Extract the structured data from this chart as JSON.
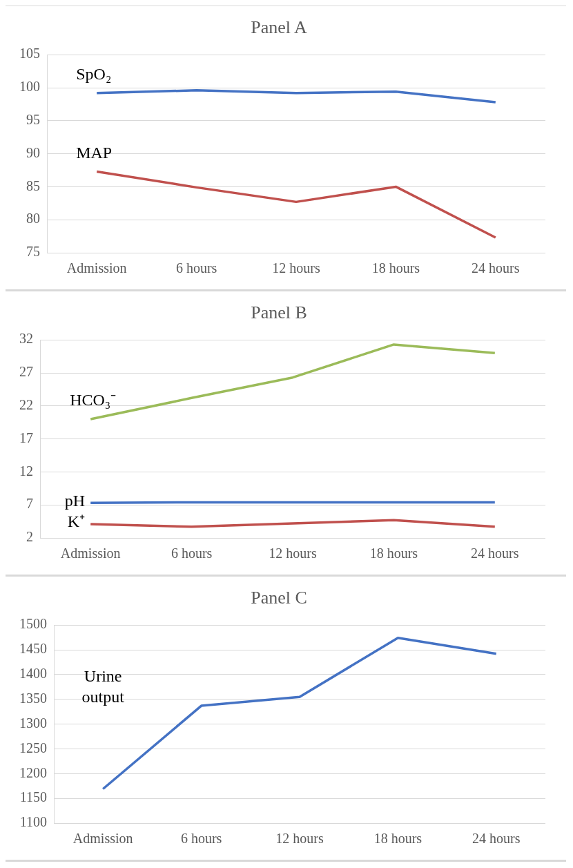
{
  "chart_data": [
    {
      "type": "line",
      "title": "Panel A",
      "categories": [
        "Admission",
        "6 hours",
        "12 hours",
        "18 hours",
        "24 hours"
      ],
      "ylim": [
        75,
        105
      ],
      "yticks": [
        75,
        80,
        85,
        90,
        95,
        100,
        105
      ],
      "grid": "y",
      "legend": false,
      "marker": "none",
      "series": [
        {
          "name": "SpO₂",
          "color": "#4472c4",
          "values": [
            99.2,
            99.6,
            99.2,
            99.4,
            97.8
          ]
        },
        {
          "name": "MAP",
          "color": "#c0504d",
          "values": [
            87.3,
            84.9,
            82.7,
            85.0,
            77.3
          ]
        }
      ]
    },
    {
      "type": "line",
      "title": "Panel B",
      "categories": [
        "Admission",
        "6 hours",
        "12 hours",
        "18 hours",
        "24 hours"
      ],
      "ylim": [
        2,
        32
      ],
      "yticks": [
        2,
        7,
        12,
        17,
        22,
        27,
        32
      ],
      "grid": "y",
      "legend": false,
      "marker": "none",
      "series": [
        {
          "name": "HCO₃⁻",
          "color": "#9bbb59",
          "values": [
            20.0,
            23.2,
            26.3,
            31.3,
            30.0
          ]
        },
        {
          "name": "pH",
          "color": "#4472c4",
          "values": [
            7.3,
            7.4,
            7.4,
            7.4,
            7.4
          ]
        },
        {
          "name": "K⁺",
          "color": "#c0504d",
          "values": [
            4.1,
            3.7,
            4.2,
            4.7,
            3.7
          ]
        }
      ]
    },
    {
      "type": "line",
      "title": "Panel C",
      "categories": [
        "Admission",
        "6 hours",
        "12 hours",
        "18 hours",
        "24 hours"
      ],
      "ylim": [
        1100,
        1500
      ],
      "yticks": [
        1100,
        1150,
        1200,
        1250,
        1300,
        1350,
        1400,
        1450,
        1500
      ],
      "grid": "y",
      "legend": false,
      "marker": "none",
      "series": [
        {
          "name": "Urine output",
          "color": "#4472c4",
          "values": [
            1169,
            1337,
            1355,
            1474,
            1442
          ]
        }
      ]
    }
  ]
}
